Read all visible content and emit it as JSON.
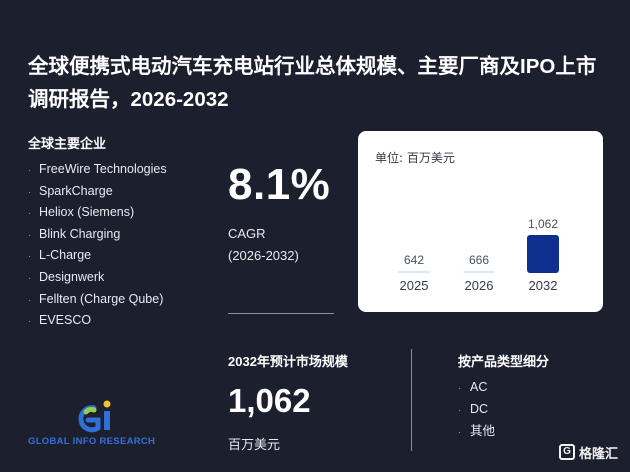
{
  "title": "全球便携式电动汽车充电站行业总体规模、主要厂商及IPO上市调研报告，2026-2032",
  "players": {
    "heading": "全球主要企业",
    "items": [
      "FreeWire Technologies",
      "SparkCharge",
      "Heliox (Siemens)",
      "Blink Charging",
      "L-Charge",
      "Designwerk",
      "Fellten (Charge Qube)",
      "EVESCO"
    ]
  },
  "cagr": {
    "value": "8.1%",
    "label": "CAGR",
    "period": "(2026-2032)"
  },
  "market": {
    "heading": "2032年预计市场规模",
    "value": "1,062",
    "unit": "百万美元"
  },
  "segments": {
    "heading": "按产品类型细分",
    "items": [
      "AC",
      "DC",
      "其他"
    ]
  },
  "chart_data": {
    "type": "bar",
    "unit_label": "单位: 百万美元",
    "categories": [
      "2025",
      "2026",
      "2032"
    ],
    "values": [
      642,
      666,
      1062
    ],
    "value_labels": [
      "642",
      "666",
      "1,062"
    ],
    "colors": [
      "#d6e8fb",
      "#d6e8fb",
      "#0f2f8f"
    ],
    "grid": false
  },
  "brand": {
    "logo_text": "GLOBAL INFO RESEARCH",
    "watermark_text": "格隆汇",
    "logo_colors": {
      "blue": "#2f6fd6",
      "green": "#8fd14f",
      "yellow": "#f4c430"
    }
  }
}
